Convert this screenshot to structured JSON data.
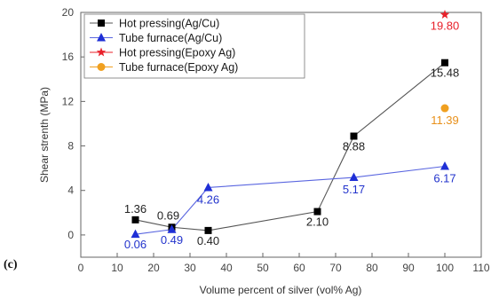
{
  "chart_data": {
    "type": "line",
    "panel_label": "(c)",
    "xlabel": "Volume percent of silver (vol% Ag)",
    "ylabel": "Shear strenth (MPa)",
    "xlim": [
      0,
      110
    ],
    "ylim": [
      -2,
      20
    ],
    "x_ticks": [
      0,
      10,
      20,
      30,
      40,
      50,
      60,
      70,
      80,
      90,
      100,
      110
    ],
    "y_ticks": [
      0,
      4,
      8,
      12,
      16,
      20
    ],
    "legend_position": "top-left",
    "series": [
      {
        "name": "Hot pressing(Ag/Cu)",
        "marker": "square",
        "color": "#000000",
        "line_color": "#555555",
        "label_color": "#222222",
        "points": [
          {
            "x": 15,
            "y": 1.36,
            "label": "1.36"
          },
          {
            "x": 25,
            "y": 0.69,
            "label": "0.69"
          },
          {
            "x": 35,
            "y": 0.4,
            "label": "0.40"
          },
          {
            "x": 65,
            "y": 2.1,
            "label": "2.10"
          },
          {
            "x": 75,
            "y": 8.88,
            "label": "8.88"
          },
          {
            "x": 100,
            "y": 15.48,
            "label": "15.48"
          }
        ]
      },
      {
        "name": "Tube furnace(Ag/Cu)",
        "marker": "triangle",
        "color": "#1f2fd6",
        "line_color": "#5a66e0",
        "label_color": "#2233cc",
        "points": [
          {
            "x": 15,
            "y": 0.06,
            "label": "0.06"
          },
          {
            "x": 25,
            "y": 0.49,
            "label": "0.49"
          },
          {
            "x": 35,
            "y": 4.26,
            "label": "4.26"
          },
          {
            "x": 75,
            "y": 5.17,
            "label": "5.17"
          },
          {
            "x": 100,
            "y": 6.17,
            "label": "6.17"
          }
        ]
      },
      {
        "name": "Hot pressing(Epoxy Ag)",
        "marker": "star",
        "color": "#e8202a",
        "line_color": "#e8202a",
        "label_color": "#e8202a",
        "points": [
          {
            "x": 100,
            "y": 19.8,
            "label": "19.80"
          }
        ]
      },
      {
        "name": "Tube furnace(Epoxy Ag)",
        "marker": "circle",
        "color": "#f0a020",
        "line_color": "#f0a020",
        "label_color": "#e8901a",
        "points": [
          {
            "x": 100,
            "y": 11.39,
            "label": "11.39"
          }
        ]
      }
    ]
  }
}
